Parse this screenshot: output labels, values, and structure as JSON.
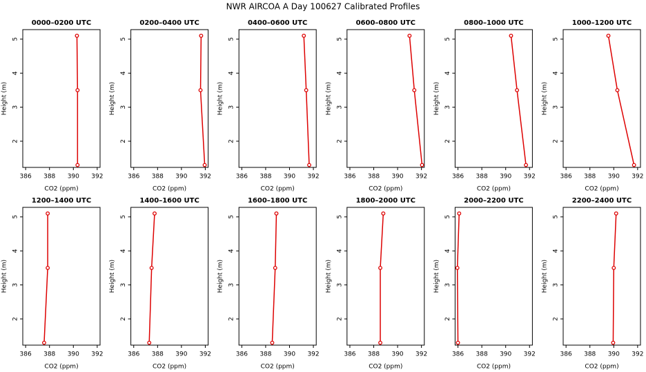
{
  "title": "NWR AIRCOA A  Day 100627  Calibrated Profiles",
  "chart_data": [
    {
      "type": "line",
      "title": "0000–0200 UTC",
      "xlabel": "CO2 (ppm)",
      "ylabel": "Height (m)",
      "color": "#dd0000",
      "x": [
        390.35,
        390.35,
        390.3
      ],
      "values": [
        1.3,
        3.5,
        5.1
      ],
      "xlim": [
        385.76,
        392.24
      ],
      "ylim": [
        1.23,
        5.28
      ],
      "xticks": [
        386,
        388,
        390,
        392
      ],
      "yticks": [
        2,
        3,
        4,
        5
      ]
    },
    {
      "type": "line",
      "title": "0200–0400 UTC",
      "xlabel": "CO2 (ppm)",
      "ylabel": "Height (m)",
      "color": "#dd0000",
      "x": [
        391.95,
        391.6,
        391.65
      ],
      "values": [
        1.3,
        3.5,
        5.1
      ],
      "xlim": [
        385.76,
        392.24
      ],
      "ylim": [
        1.23,
        5.28
      ],
      "xticks": [
        386,
        388,
        390,
        392
      ],
      "yticks": [
        2,
        3,
        4,
        5
      ]
    },
    {
      "type": "line",
      "title": "0400–0600 UTC",
      "xlabel": "CO2 (ppm)",
      "ylabel": "Height (m)",
      "color": "#dd0000",
      "x": [
        391.65,
        391.4,
        391.2
      ],
      "values": [
        1.3,
        3.5,
        5.1
      ],
      "xlim": [
        385.76,
        392.24
      ],
      "ylim": [
        1.23,
        5.28
      ],
      "xticks": [
        386,
        388,
        390,
        392
      ],
      "yticks": [
        2,
        3,
        4,
        5
      ]
    },
    {
      "type": "line",
      "title": "0600–0800 UTC",
      "xlabel": "CO2 (ppm)",
      "ylabel": "Height (m)",
      "color": "#dd0000",
      "x": [
        392.05,
        391.4,
        391.0
      ],
      "values": [
        1.3,
        3.5,
        5.1
      ],
      "xlim": [
        385.76,
        392.24
      ],
      "ylim": [
        1.23,
        5.28
      ],
      "xticks": [
        386,
        388,
        390,
        392
      ],
      "yticks": [
        2,
        3,
        4,
        5
      ]
    },
    {
      "type": "line",
      "title": "0800–1000 UTC",
      "xlabel": "CO2 (ppm)",
      "ylabel": "Height (m)",
      "color": "#dd0000",
      "x": [
        391.7,
        390.95,
        390.45
      ],
      "values": [
        1.3,
        3.5,
        5.1
      ],
      "xlim": [
        385.76,
        392.24
      ],
      "ylim": [
        1.23,
        5.28
      ],
      "xticks": [
        386,
        388,
        390,
        392
      ],
      "yticks": [
        2,
        3,
        4,
        5
      ]
    },
    {
      "type": "line",
      "title": "1000–1200 UTC",
      "xlabel": "CO2 (ppm)",
      "ylabel": "Height (m)",
      "color": "#dd0000",
      "x": [
        391.7,
        390.3,
        389.55
      ],
      "values": [
        1.3,
        3.5,
        5.1
      ],
      "xlim": [
        385.76,
        392.24
      ],
      "ylim": [
        1.23,
        5.28
      ],
      "xticks": [
        386,
        388,
        390,
        392
      ],
      "yticks": [
        2,
        3,
        4,
        5
      ]
    },
    {
      "type": "line",
      "title": "1200–1400 UTC",
      "xlabel": "CO2 (ppm)",
      "ylabel": "Height (m)",
      "color": "#dd0000",
      "x": [
        387.55,
        387.85,
        387.85
      ],
      "values": [
        1.3,
        3.5,
        5.1
      ],
      "xlim": [
        385.76,
        392.24
      ],
      "ylim": [
        1.23,
        5.28
      ],
      "xticks": [
        386,
        388,
        390,
        392
      ],
      "yticks": [
        2,
        3,
        4,
        5
      ]
    },
    {
      "type": "line",
      "title": "1400–1600 UTC",
      "xlabel": "CO2 (ppm)",
      "ylabel": "Height (m)",
      "color": "#dd0000",
      "x": [
        387.3,
        387.5,
        387.75
      ],
      "values": [
        1.3,
        3.5,
        5.1
      ],
      "xlim": [
        385.76,
        392.24
      ],
      "ylim": [
        1.23,
        5.28
      ],
      "xticks": [
        386,
        388,
        390,
        392
      ],
      "yticks": [
        2,
        3,
        4,
        5
      ]
    },
    {
      "type": "line",
      "title": "1600–1800 UTC",
      "xlabel": "CO2 (ppm)",
      "ylabel": "Height (m)",
      "color": "#dd0000",
      "x": [
        388.55,
        388.8,
        388.9
      ],
      "values": [
        1.3,
        3.5,
        5.1
      ],
      "xlim": [
        385.76,
        392.24
      ],
      "ylim": [
        1.23,
        5.28
      ],
      "xticks": [
        386,
        388,
        390,
        392
      ],
      "yticks": [
        2,
        3,
        4,
        5
      ]
    },
    {
      "type": "line",
      "title": "1800–2000 UTC",
      "xlabel": "CO2 (ppm)",
      "ylabel": "Height (m)",
      "color": "#dd0000",
      "x": [
        388.55,
        388.55,
        388.8
      ],
      "values": [
        1.3,
        3.5,
        5.1
      ],
      "xlim": [
        385.76,
        392.24
      ],
      "ylim": [
        1.23,
        5.28
      ],
      "xticks": [
        386,
        388,
        390,
        392
      ],
      "yticks": [
        2,
        3,
        4,
        5
      ]
    },
    {
      "type": "line",
      "title": "2000–2200 UTC",
      "xlabel": "CO2 (ppm)",
      "ylabel": "Height (m)",
      "color": "#dd0000",
      "x": [
        386.0,
        385.95,
        386.1
      ],
      "values": [
        1.3,
        3.5,
        5.1
      ],
      "xlim": [
        385.76,
        392.24
      ],
      "ylim": [
        1.23,
        5.28
      ],
      "xticks": [
        386,
        388,
        390,
        392
      ],
      "yticks": [
        2,
        3,
        4,
        5
      ]
    },
    {
      "type": "line",
      "title": "2200–2400 UTC",
      "xlabel": "CO2 (ppm)",
      "ylabel": "Height (m)",
      "color": "#dd0000",
      "x": [
        389.95,
        390.0,
        390.2
      ],
      "values": [
        1.3,
        3.5,
        5.1
      ],
      "xlim": [
        385.76,
        392.24
      ],
      "ylim": [
        1.23,
        5.28
      ],
      "xticks": [
        386,
        388,
        390,
        392
      ],
      "yticks": [
        2,
        3,
        4,
        5
      ]
    }
  ]
}
